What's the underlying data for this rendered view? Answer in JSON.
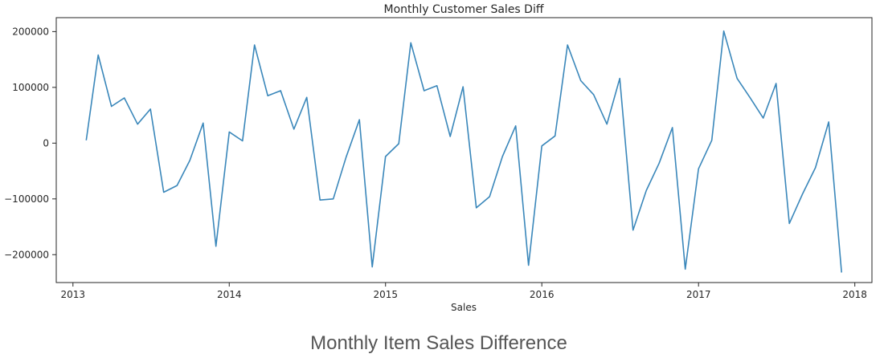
{
  "caption": "Monthly Item Sales Difference",
  "chart_data": {
    "type": "line",
    "title": "Monthly Customer Sales Diff",
    "xlabel": "Sales",
    "ylabel": "",
    "ylim": [
      -250000,
      225000
    ],
    "y_ticks": [
      200000,
      100000,
      0,
      -100000,
      -200000
    ],
    "y_tick_labels": [
      "200000",
      "100000",
      "0",
      "−100000",
      "−200000"
    ],
    "x_ticks": [
      "2013-01-01",
      "2014-01-01",
      "2015-01-01",
      "2016-01-01",
      "2017-01-01",
      "2018-01-01"
    ],
    "x_tick_labels": [
      "2013",
      "2014",
      "2015",
      "2016",
      "2017",
      "2018"
    ],
    "x_range": [
      "2012-11-23",
      "2018-02-10"
    ],
    "grid": false,
    "line_color": "#3a87ba",
    "series": [
      {
        "values": [
          {
            "x": "2013-02-01",
            "y": 5000
          },
          {
            "x": "2013-03-01",
            "y": 158000
          },
          {
            "x": "2013-04-01",
            "y": 66000
          },
          {
            "x": "2013-05-01",
            "y": 81000
          },
          {
            "x": "2013-06-01",
            "y": 34000
          },
          {
            "x": "2013-07-01",
            "y": 61000
          },
          {
            "x": "2013-08-01",
            "y": -88000
          },
          {
            "x": "2013-09-01",
            "y": -76000
          },
          {
            "x": "2013-10-01",
            "y": -31000
          },
          {
            "x": "2013-11-01",
            "y": 36000
          },
          {
            "x": "2013-12-01",
            "y": -185000
          },
          {
            "x": "2014-01-01",
            "y": 20000
          },
          {
            "x": "2014-02-01",
            "y": 4000
          },
          {
            "x": "2014-03-01",
            "y": 176000
          },
          {
            "x": "2014-04-01",
            "y": 85000
          },
          {
            "x": "2014-05-01",
            "y": 94000
          },
          {
            "x": "2014-06-01",
            "y": 25000
          },
          {
            "x": "2014-07-01",
            "y": 82000
          },
          {
            "x": "2014-08-01",
            "y": -102000
          },
          {
            "x": "2014-09-01",
            "y": -100000
          },
          {
            "x": "2014-10-01",
            "y": -25000
          },
          {
            "x": "2014-11-01",
            "y": 42000
          },
          {
            "x": "2014-12-01",
            "y": -222000
          },
          {
            "x": "2015-01-01",
            "y": -24000
          },
          {
            "x": "2015-02-01",
            "y": -1000
          },
          {
            "x": "2015-03-01",
            "y": 180000
          },
          {
            "x": "2015-04-01",
            "y": 94000
          },
          {
            "x": "2015-05-01",
            "y": 103000
          },
          {
            "x": "2015-06-01",
            "y": 12000
          },
          {
            "x": "2015-07-01",
            "y": 101000
          },
          {
            "x": "2015-08-01",
            "y": -116000
          },
          {
            "x": "2015-09-01",
            "y": -96000
          },
          {
            "x": "2015-10-01",
            "y": -24000
          },
          {
            "x": "2015-11-01",
            "y": 31000
          },
          {
            "x": "2015-12-01",
            "y": -219000
          },
          {
            "x": "2016-01-01",
            "y": -5000
          },
          {
            "x": "2016-02-01",
            "y": 13000
          },
          {
            "x": "2016-03-01",
            "y": 176000
          },
          {
            "x": "2016-04-01",
            "y": 112000
          },
          {
            "x": "2016-05-01",
            "y": 87000
          },
          {
            "x": "2016-06-01",
            "y": 34000
          },
          {
            "x": "2016-07-01",
            "y": 116000
          },
          {
            "x": "2016-08-01",
            "y": -156000
          },
          {
            "x": "2016-09-01",
            "y": -85000
          },
          {
            "x": "2016-10-01",
            "y": -36000
          },
          {
            "x": "2016-11-01",
            "y": 28000
          },
          {
            "x": "2016-12-01",
            "y": -226000
          },
          {
            "x": "2017-01-01",
            "y": -46000
          },
          {
            "x": "2017-02-01",
            "y": 5000
          },
          {
            "x": "2017-03-01",
            "y": 201000
          },
          {
            "x": "2017-04-01",
            "y": 116000
          },
          {
            "x": "2017-05-01",
            "y": 82000
          },
          {
            "x": "2017-06-01",
            "y": 45000
          },
          {
            "x": "2017-07-01",
            "y": 107000
          },
          {
            "x": "2017-08-01",
            "y": -144000
          },
          {
            "x": "2017-09-01",
            "y": -91000
          },
          {
            "x": "2017-10-01",
            "y": -44000
          },
          {
            "x": "2017-11-01",
            "y": 38000
          },
          {
            "x": "2017-12-01",
            "y": -232000
          }
        ]
      }
    ]
  }
}
